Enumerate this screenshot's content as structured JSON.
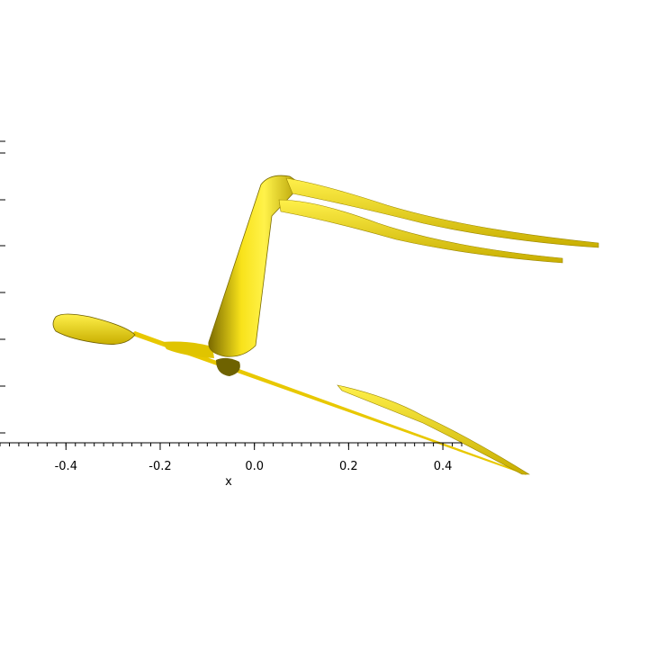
{
  "chart_data": {
    "type": "isosurface",
    "xlabel": "x",
    "xlim": [
      -0.54,
      0.44
    ],
    "xticks": [
      -0.4,
      -0.2,
      {
        "value": 0,
        "label": "0.0"
      },
      0.2,
      0.4
    ],
    "color": "#f5e000"
  }
}
